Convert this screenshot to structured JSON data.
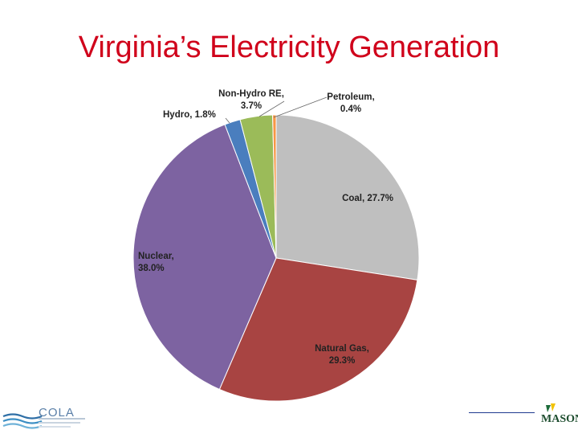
{
  "slide": {
    "title": "Virginia’s Electricity Generation"
  },
  "chart_data": {
    "type": "pie",
    "slices": [
      {
        "name": "Coal",
        "value": 27.7,
        "color": "#bfbfbf",
        "label_lines": [
          "Coal, 27.7%"
        ]
      },
      {
        "name": "Natural Gas",
        "value": 29.3,
        "color": "#a84442",
        "label_lines": [
          "Natural Gas,",
          "29.3%"
        ]
      },
      {
        "name": "Nuclear",
        "value": 38.0,
        "color": "#7d63a1",
        "label_lines": [
          "Nuclear,",
          "38.0%"
        ]
      },
      {
        "name": "Hydro",
        "value": 1.8,
        "color": "#4a7ebe",
        "label_lines": [
          "Hydro, 1.8%"
        ]
      },
      {
        "name": "Non-Hydro RE",
        "value": 3.7,
        "color": "#9bbb59",
        "label_lines": [
          "Non-Hydro RE,",
          "3.7%"
        ]
      },
      {
        "name": "Petroleum",
        "value": 0.4,
        "color": "#f79646",
        "label_lines": [
          "Petroleum,",
          "0.4%"
        ]
      }
    ],
    "start": "12 o'clock",
    "direction": "clockwise",
    "legend": "none"
  },
  "footer": {
    "left_logo_text": "COLA",
    "right_logo_text": "MASON"
  }
}
